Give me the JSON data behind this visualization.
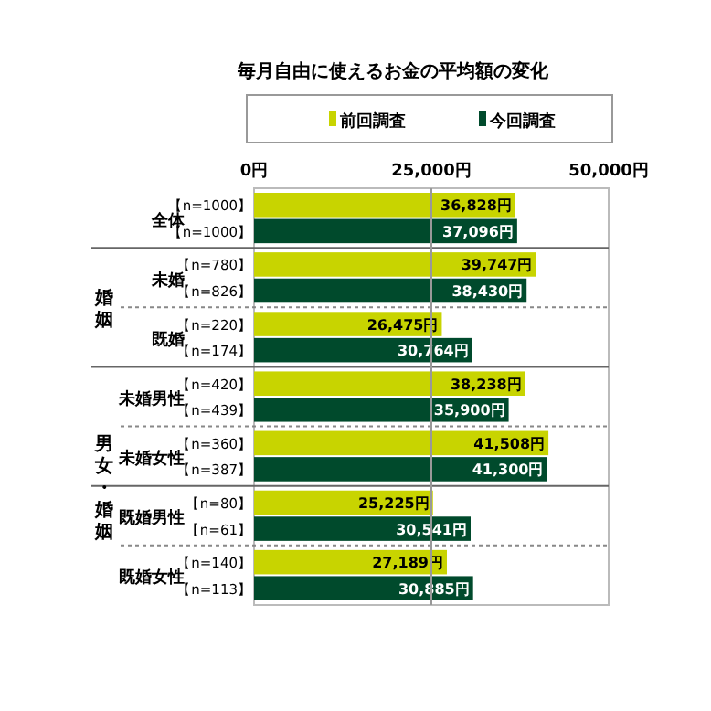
{
  "chart_data": {
    "type": "bar",
    "orientation": "horizontal",
    "title": "毎月自由に使えるお金の平均額の変化",
    "categories": [
      "全体",
      "未婚",
      "既婚",
      "未婚男性",
      "未婚女性",
      "既婚男性",
      "既婚女性"
    ],
    "series": [
      {
        "name": "前回調査",
        "color": "#c8d400",
        "values": [
          36828,
          39747,
          26475,
          38238,
          41508,
          25225,
          27189
        ],
        "value_labels": [
          "36,828円",
          "39,747円",
          "26,475円",
          "38,238円",
          "41,508円",
          "25,225円",
          "27,189円"
        ]
      },
      {
        "name": "今回調査",
        "color": "#004a2c",
        "values": [
          37096,
          38430,
          30764,
          35900,
          41300,
          30541,
          30885
        ],
        "value_labels": [
          "37,096円",
          "38,430円",
          "30,764円",
          "35,900円",
          "41,300円",
          "30,541円",
          "30,885円"
        ]
      }
    ],
    "xlim": [
      0,
      50000
    ],
    "xticks": [
      {
        "value": 0,
        "label": "0円"
      },
      {
        "value": 25000,
        "label": "25,000円"
      },
      {
        "value": 50000,
        "label": "50,000円"
      }
    ],
    "ref_lines": [
      {
        "axis": "x",
        "value": 25000,
        "color": "#999999"
      }
    ],
    "legend": "top",
    "annotations": [
      "【n=1000】",
      "【n=1000】",
      "【n=780】",
      "【n=826】",
      "【n=220】",
      "【n=174】",
      "【n=420】",
      "【n=439】",
      "【n=360】",
      "【n=387】",
      "【n=80】",
      "【n=61】",
      "【n=140】",
      "【n=113】",
      "婚姻",
      "男女・婚姻"
    ]
  }
}
